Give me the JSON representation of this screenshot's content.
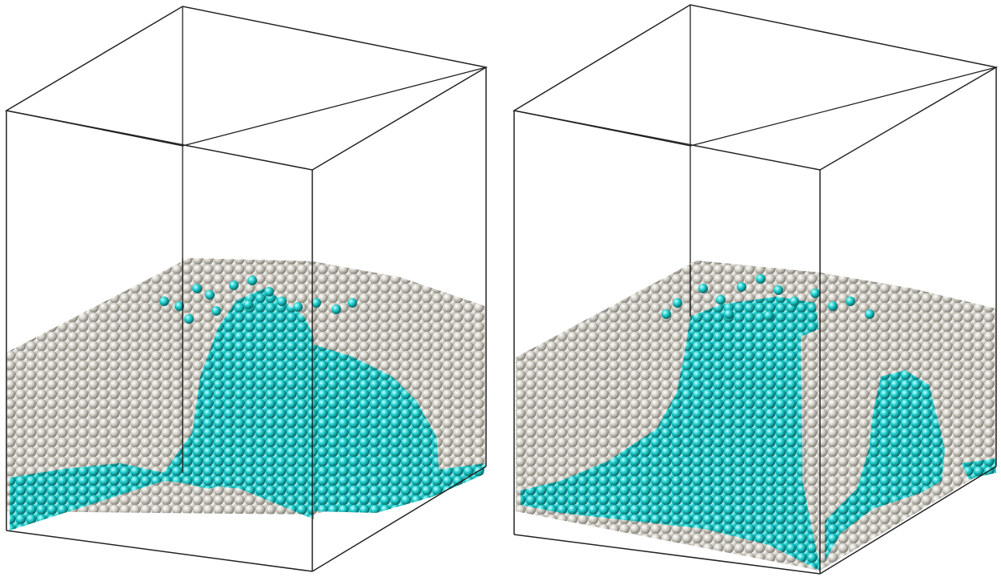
{
  "figure": {
    "panels": [
      {
        "name": "left-panel"
      },
      {
        "name": "right-panel"
      }
    ],
    "colors": {
      "background": "#ffffff",
      "box_edge": "#111111",
      "particle_gray": "#d2cfc6",
      "particle_gray_shade": "#8d8a82",
      "particle_cyan": "#1fc9c9",
      "particle_cyan_shade": "#0b6f73"
    }
  }
}
